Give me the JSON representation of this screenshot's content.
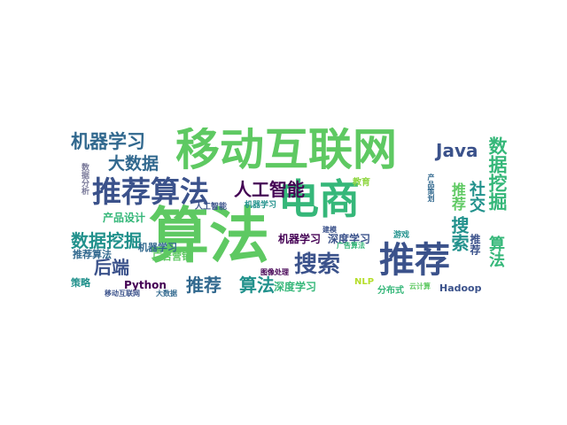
{
  "palette": {
    "green_light": "#5ec962",
    "green": "#35b779",
    "teal": "#21918c",
    "blue": "#3b528b",
    "indigo": "#31688e",
    "purple": "#440154",
    "lime": "#90d743",
    "yellow": "#b5de2b",
    "gray": "#7a7a9a"
  },
  "words": [
    {
      "text": "移动互联网"
    },
    {
      "text": "算法"
    },
    {
      "text": "电商"
    },
    {
      "text": "推荐算法"
    },
    {
      "text": "推荐"
    },
    {
      "text": "搜索"
    },
    {
      "text": "人工智能"
    },
    {
      "text": "机器学习"
    },
    {
      "text": "大数据"
    },
    {
      "text": "数据挖掘"
    },
    {
      "text": "数据挖掘"
    },
    {
      "text": "Java"
    },
    {
      "text": "后端"
    },
    {
      "text": "推荐"
    },
    {
      "text": "算法"
    },
    {
      "text": "推荐"
    },
    {
      "text": "社交"
    },
    {
      "text": "搜索"
    },
    {
      "text": "算法"
    },
    {
      "text": "推荐"
    },
    {
      "text": "深度学习"
    },
    {
      "text": "深度学习"
    },
    {
      "text": "机器学习"
    },
    {
      "text": "产品设计"
    },
    {
      "text": "广告营销"
    },
    {
      "text": "推荐算法"
    },
    {
      "text": "机器学习"
    },
    {
      "text": "Python"
    },
    {
      "text": "Hadoop"
    },
    {
      "text": "分布式"
    },
    {
      "text": "NLP"
    },
    {
      "text": "策略"
    },
    {
      "text": "游戏"
    },
    {
      "text": "教育"
    },
    {
      "text": "人工智能"
    },
    {
      "text": "机器学习"
    },
    {
      "text": "建模"
    },
    {
      "text": "数据分析"
    },
    {
      "text": "图像处理"
    },
    {
      "text": "广告算法"
    },
    {
      "text": "产品策划"
    },
    {
      "text": "移动互联网"
    },
    {
      "text": "大数据"
    },
    {
      "text": "云计算"
    }
  ]
}
